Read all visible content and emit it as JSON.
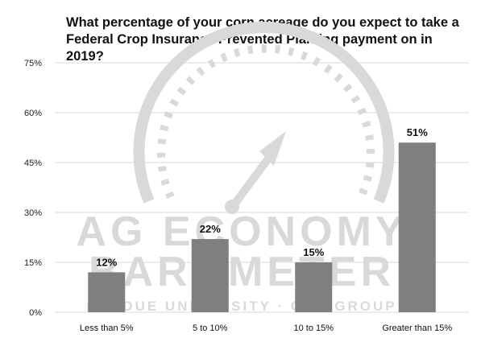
{
  "chart_data": {
    "type": "bar",
    "title": "What percentage of your corn acreage do you expect to take a Federal Crop Insurance Prevented Planting payment on in 2019?",
    "categories": [
      "Less than 5%",
      "5 to 10%",
      "10 to 15%",
      "Greater than 15%"
    ],
    "values": [
      12,
      22,
      15,
      51
    ],
    "data_labels": [
      "12%",
      "22%",
      "15%",
      "51%"
    ],
    "y_ticks": [
      0,
      15,
      30,
      45,
      60,
      75
    ],
    "y_tick_labels": [
      "0%",
      "15%",
      "30%",
      "45%",
      "60%",
      "75%"
    ],
    "ylim": [
      0,
      75
    ],
    "xlabel": "",
    "ylabel": "",
    "grid": true,
    "legend": "none"
  },
  "watermark": {
    "line1": "AG ECONOMY",
    "line2": "BAROMETER",
    "line3": "PURDUE UNIVERSITY · CME GROUP"
  },
  "colors": {
    "bar": "#7f7f7f",
    "grid": "#d9d9d9",
    "watermark": "#d9d9d9"
  }
}
